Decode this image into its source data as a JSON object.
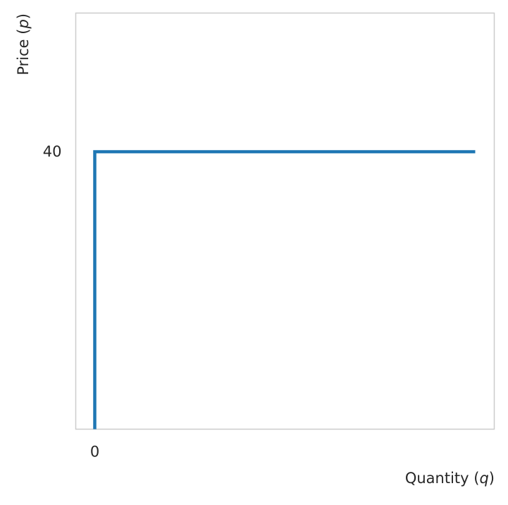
{
  "chart_data": {
    "type": "line",
    "title": "",
    "xlabel": "Quantity",
    "xlabel_symbol": "q",
    "ylabel": "Price",
    "ylabel_symbol": "p",
    "xlim": [
      -0.05,
      1.05
    ],
    "ylim": [
      0,
      60
    ],
    "x_ticks": [
      {
        "value": 0,
        "label": "0"
      }
    ],
    "y_ticks": [
      {
        "value": 40,
        "label": "40"
      }
    ],
    "grid": false,
    "series": [
      {
        "x": [
          0,
          0,
          1
        ],
        "y": [
          0,
          40,
          40
        ],
        "color": "#1f77b4"
      }
    ]
  }
}
